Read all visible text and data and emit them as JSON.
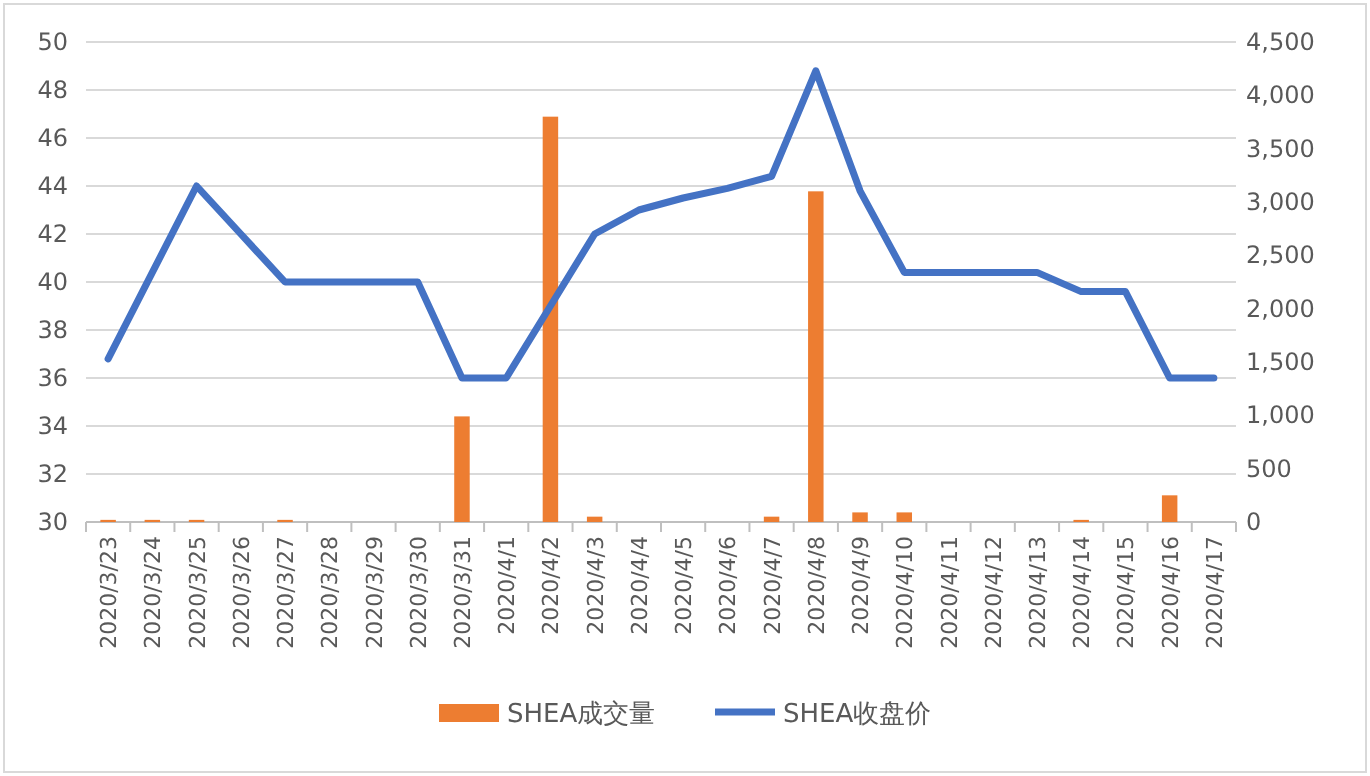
{
  "chart_data": {
    "type": "bar",
    "categories": [
      "2020/3/23",
      "2020/3/24",
      "2020/3/25",
      "2020/3/26",
      "2020/3/27",
      "2020/3/28",
      "2020/3/29",
      "2020/3/30",
      "2020/3/31",
      "2020/4/1",
      "2020/4/2",
      "2020/4/3",
      "2020/4/4",
      "2020/4/5",
      "2020/4/6",
      "2020/4/7",
      "2020/4/8",
      "2020/4/9",
      "2020/4/10",
      "2020/4/11",
      "2020/4/12",
      "2020/4/13",
      "2020/4/14",
      "2020/4/15",
      "2020/4/16",
      "2020/4/17"
    ],
    "series": [
      {
        "name": "SHEA成交量",
        "axis": "y2",
        "color": "#ed7d31",
        "values": [
          20,
          20,
          20,
          0,
          20,
          0,
          0,
          0,
          990,
          0,
          3800,
          50,
          0,
          0,
          0,
          50,
          3100,
          90,
          90,
          0,
          0,
          0,
          20,
          0,
          250,
          0
        ]
      },
      {
        "name": "SHEA收盘价",
        "type": "line",
        "color": "#4472c4",
        "marker": "none",
        "values": [
          36.8,
          40.4,
          44,
          42,
          40,
          40,
          40,
          40,
          36,
          36,
          39,
          42,
          43,
          43.5,
          43.9,
          44.4,
          48.8,
          43.8,
          40.4,
          40.4,
          40.4,
          40.4,
          39.6,
          39.6,
          36,
          36
        ]
      }
    ],
    "ylim": [
      30,
      50
    ],
    "yticks": [
      30,
      32,
      34,
      36,
      38,
      40,
      42,
      44,
      46,
      48,
      50
    ],
    "y2lim": [
      0,
      4500
    ],
    "y2ticks": [
      0,
      500,
      {
        "value": 1000,
        "label": "1,000"
      },
      {
        "value": 1500,
        "label": "1,500"
      },
      {
        "value": 2000,
        "label": "2,000"
      },
      {
        "value": 2500,
        "label": "2,500"
      },
      {
        "value": 3000,
        "label": "3,000"
      },
      {
        "value": 3500,
        "label": "3,500"
      },
      {
        "value": 4000,
        "label": "4,000"
      },
      {
        "value": 4500,
        "label": "4,500"
      }
    ],
    "grid": "y",
    "legend": "bottom"
  }
}
